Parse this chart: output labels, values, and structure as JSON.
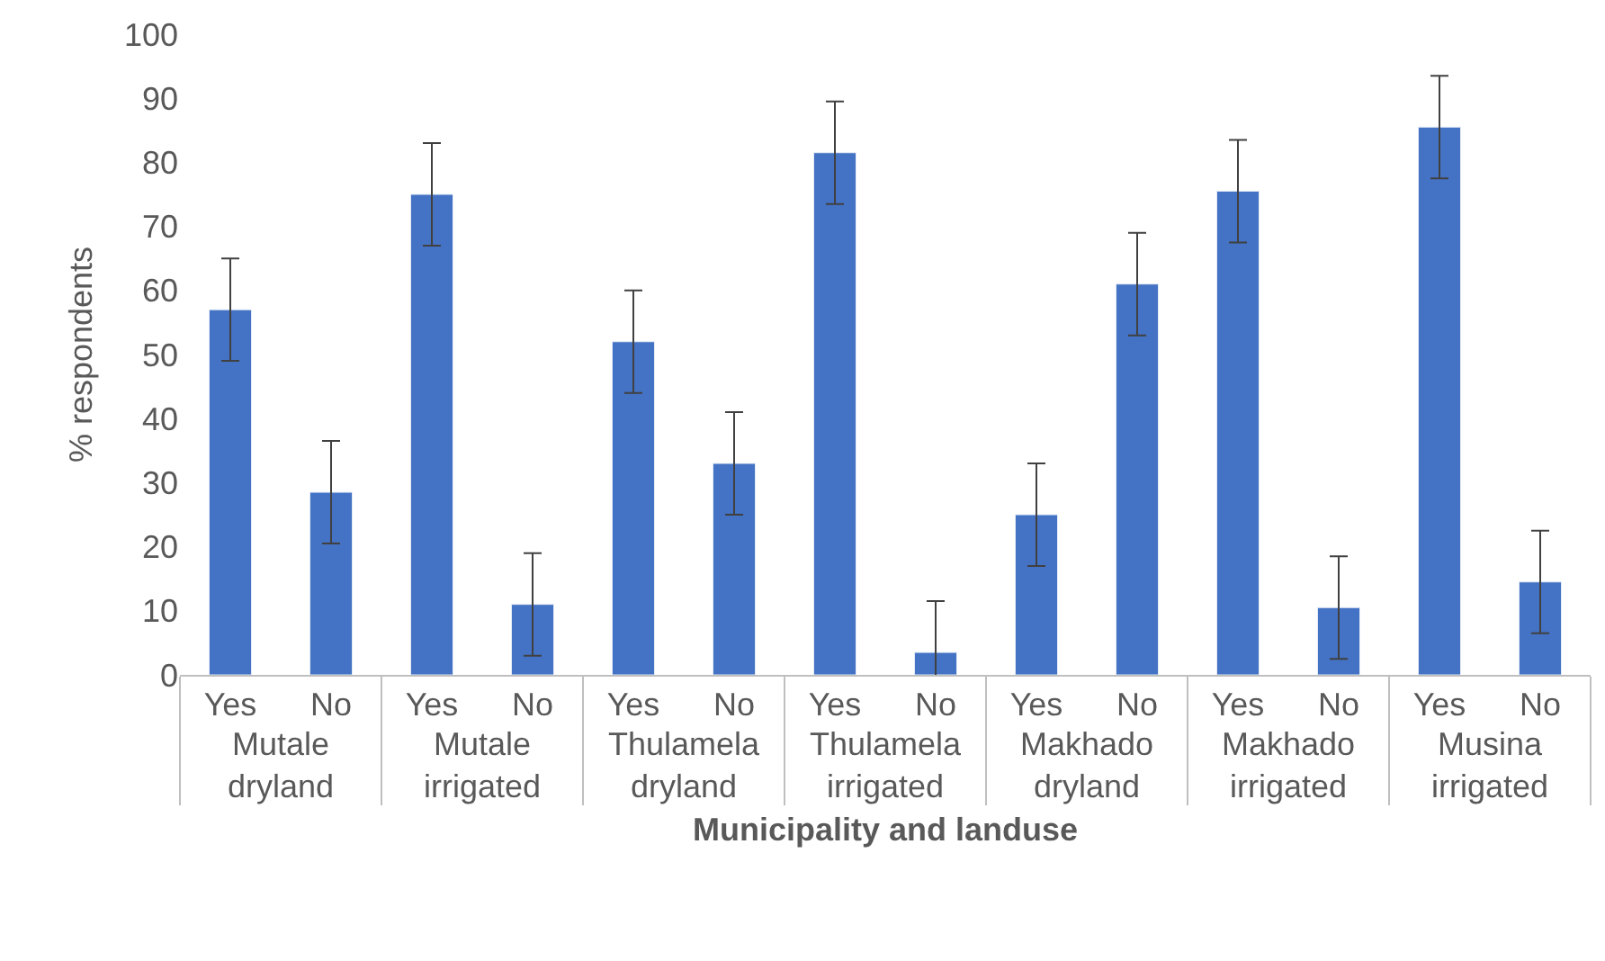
{
  "chart_data": {
    "type": "bar",
    "xlabel": "Municipality and landuse",
    "ylabel": "% respondents",
    "categories": [
      "Yes",
      "No",
      "Yes",
      "No",
      "Yes",
      "No",
      "Yes",
      "No",
      "Yes",
      "No",
      "Yes",
      "No",
      "Yes",
      "No"
    ],
    "values": [
      57,
      28.5,
      75,
      11,
      52,
      33,
      81.5,
      3.5,
      25,
      61,
      75.5,
      10.5,
      85.5,
      14.5
    ],
    "errors": [
      8,
      8,
      8,
      8,
      8,
      8,
      8,
      8,
      8,
      8,
      8,
      8,
      8,
      8
    ],
    "color": "#4472c4",
    "ylim": [
      0,
      100
    ],
    "yticks": [
      0,
      10,
      20,
      30,
      40,
      50,
      60,
      70,
      80,
      90,
      100
    ],
    "annotations": [
      "Mutale dryland",
      "Mutale irrigated",
      "Thulamela dryland",
      "Thulamela irrigated",
      "Makhado dryland",
      "Makhado irrigated",
      "Musina irrigated"
    ]
  }
}
